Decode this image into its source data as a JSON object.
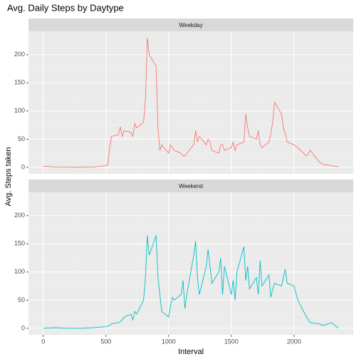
{
  "chart_data": {
    "type": "line",
    "title": "Avg. Daily Steps by Daytype",
    "x_label": "Interval",
    "y_label": "Avg. Steps taken",
    "facet": true,
    "grid": true,
    "xlim": [
      -117.75,
      2472.75
    ],
    "xticks": [
      0,
      500,
      1000,
      1500,
      2000
    ],
    "ylim": [
      -11.5,
      241.5
    ],
    "yticks": [
      0,
      50,
      100,
      150,
      200
    ],
    "x": [
      0,
      100,
      200,
      300,
      400,
      500,
      515,
      530,
      545,
      600,
      615,
      630,
      645,
      700,
      715,
      730,
      745,
      800,
      815,
      830,
      845,
      900,
      915,
      930,
      945,
      1000,
      1015,
      1030,
      1045,
      1100,
      1115,
      1130,
      1145,
      1200,
      1215,
      1230,
      1245,
      1300,
      1315,
      1330,
      1345,
      1400,
      1415,
      1430,
      1445,
      1500,
      1515,
      1530,
      1545,
      1600,
      1615,
      1630,
      1645,
      1700,
      1715,
      1730,
      1745,
      1800,
      1815,
      1830,
      1845,
      1900,
      1915,
      1930,
      1945,
      2000,
      2030,
      2100,
      2130,
      2200,
      2230,
      2300,
      2355
    ],
    "series": [
      {
        "name": "Weekday",
        "color": "#F8766D",
        "values": [
          2,
          0.4,
          0.3,
          0.2,
          0.6,
          3,
          5,
          35,
          55,
          58,
          72,
          55,
          65,
          62,
          55,
          78,
          70,
          80,
          120,
          230,
          200,
          180,
          70,
          30,
          40,
          25,
          40,
          35,
          30,
          25,
          20,
          20,
          25,
          40,
          65,
          45,
          55,
          40,
          50,
          45,
          30,
          25,
          40,
          40,
          30,
          35,
          45,
          30,
          40,
          45,
          95,
          70,
          55,
          50,
          65,
          40,
          35,
          45,
          60,
          80,
          115,
          95,
          70,
          60,
          45,
          40,
          35,
          20,
          30,
          10,
          5,
          3,
          1
        ]
      },
      {
        "name": "Weekend",
        "color": "#00BFC4",
        "values": [
          0,
          1,
          0,
          0,
          1,
          3,
          4,
          5,
          8,
          10,
          12,
          15,
          20,
          25,
          15,
          30,
          25,
          50,
          90,
          165,
          130,
          165,
          90,
          60,
          30,
          20,
          40,
          55,
          50,
          60,
          85,
          35,
          60,
          130,
          155,
          90,
          60,
          110,
          140,
          110,
          80,
          100,
          125,
          60,
          110,
          60,
          85,
          50,
          100,
          145,
          85,
          110,
          70,
          90,
          60,
          120,
          75,
          95,
          55,
          70,
          80,
          75,
          90,
          105,
          80,
          75,
          50,
          20,
          10,
          8,
          5,
          10,
          0
        ]
      }
    ]
  }
}
